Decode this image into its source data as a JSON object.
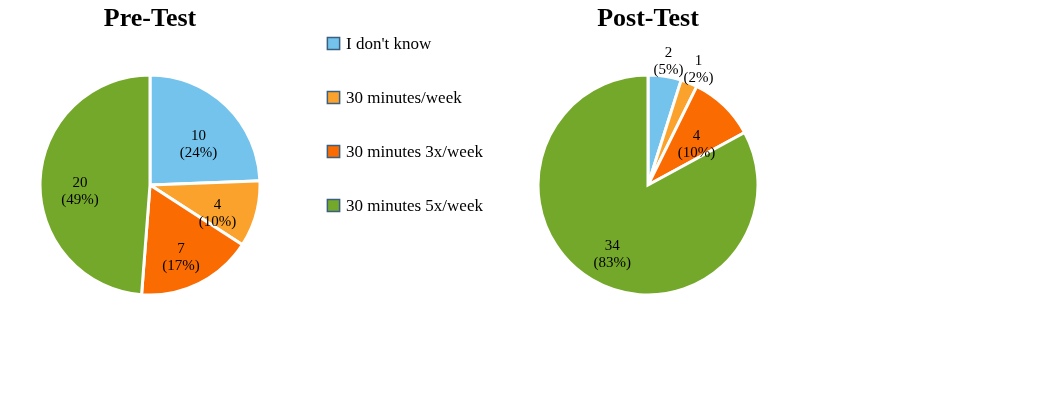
{
  "chart_data": [
    {
      "type": "pie",
      "title": "Pre-Test",
      "categories": [
        "I don't know",
        "30 minutes/week",
        "30 minutes 3x/week",
        "30 minutes 5x/week"
      ],
      "values": [
        10,
        4,
        7,
        20
      ],
      "colors": [
        "#74c3ec",
        "#fba22c",
        "#fa6b02",
        "#74a82b"
      ],
      "value_labels": [
        "10\n(24%)",
        "4\n(10%)",
        "7\n(17%)",
        "20\n(49%)"
      ],
      "legend": "right"
    },
    {
      "type": "pie",
      "title": "Post-Test",
      "categories": [
        null,
        null,
        null,
        null
      ],
      "values": [
        2,
        1,
        4,
        34
      ],
      "colors": [
        "#74c3ec",
        "#fba22c",
        "#fa6b02",
        "#74a82b"
      ],
      "value_labels": [
        "2\n(5%)",
        "1\n(2%)",
        "4\n(10%)",
        "34\n(83%)"
      ],
      "legend": false
    }
  ]
}
